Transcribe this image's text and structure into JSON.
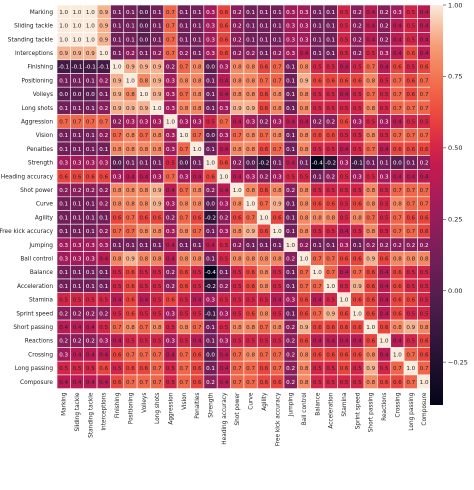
{
  "chart_data": {
    "type": "heatmap",
    "title": "",
    "labels": [
      "Marking",
      "Sliding tackle",
      "Standing tackle",
      "Interceptions",
      "Finishing",
      "Positioning",
      "Volleys",
      "Long shots",
      "Aggression",
      "Vision",
      "Penalties",
      "Strength",
      "Heading accuracy",
      "Shot power",
      "Curve",
      "Agility",
      "Free kick accuracy",
      "Jumping",
      "Ball control",
      "Balance",
      "Acceleration",
      "Stamina",
      "Sprint speed",
      "Short passing",
      "Reactions",
      "Crossing",
      "Long passing",
      "Composure"
    ],
    "matrix": [
      [
        1.0,
        1.0,
        1.0,
        0.9,
        0.1,
        0.1,
        0.0,
        0.1,
        0.7,
        0.1,
        0.1,
        0.3,
        0.6,
        0.2,
        0.1,
        0.1,
        0.1,
        0.3,
        0.3,
        0.1,
        0.1,
        0.5,
        0.2,
        0.4,
        0.2,
        0.3,
        0.5,
        0.4
      ],
      [
        1.0,
        1.0,
        1.0,
        0.9,
        0.1,
        0.1,
        0.0,
        0.1,
        0.7,
        0.1,
        0.1,
        0.3,
        0.6,
        0.2,
        0.1,
        0.1,
        0.1,
        0.3,
        0.3,
        0.1,
        0.1,
        0.5,
        0.2,
        0.4,
        0.2,
        0.4,
        0.5,
        0.4
      ],
      [
        1.0,
        1.0,
        1.0,
        0.9,
        0.1,
        0.1,
        0.0,
        0.1,
        0.7,
        0.1,
        0.1,
        0.3,
        0.6,
        0.2,
        0.1,
        0.1,
        0.1,
        0.3,
        0.3,
        0.1,
        0.1,
        0.5,
        0.2,
        0.4,
        0.2,
        0.4,
        0.5,
        0.4
      ],
      [
        0.9,
        0.9,
        0.9,
        1.0,
        0.1,
        0.2,
        0.1,
        0.2,
        0.7,
        0.2,
        0.1,
        0.3,
        0.6,
        0.2,
        0.2,
        0.1,
        0.2,
        0.3,
        0.4,
        0.1,
        0.1,
        0.5,
        0.2,
        0.5,
        0.3,
        0.4,
        0.6,
        0.4
      ],
      [
        -0.1,
        -0.1,
        -0.1,
        -0.1,
        1.0,
        0.9,
        0.9,
        0.9,
        0.2,
        0.7,
        0.8,
        0.0,
        0.3,
        0.8,
        0.8,
        0.6,
        0.7,
        0.1,
        0.8,
        0.5,
        0.5,
        0.4,
        0.5,
        0.7,
        0.4,
        0.6,
        0.5,
        0.6
      ],
      [
        0.1,
        0.1,
        0.1,
        0.2,
        0.9,
        1.0,
        0.8,
        0.9,
        0.3,
        0.8,
        0.8,
        0.1,
        0.4,
        0.8,
        0.8,
        0.7,
        0.7,
        0.1,
        0.9,
        0.6,
        0.6,
        0.6,
        0.6,
        0.8,
        0.5,
        0.7,
        0.6,
        0.7
      ],
      [
        0.0,
        0.0,
        0.0,
        0.1,
        0.9,
        0.8,
        1.0,
        0.9,
        0.3,
        0.7,
        0.8,
        0.1,
        0.4,
        0.8,
        0.8,
        0.6,
        0.8,
        0.1,
        0.8,
        0.5,
        0.5,
        0.4,
        0.5,
        0.7,
        0.5,
        0.7,
        0.6,
        0.7
      ],
      [
        0.1,
        0.1,
        0.1,
        0.2,
        0.9,
        0.9,
        0.9,
        1.0,
        0.3,
        0.8,
        0.8,
        0.1,
        0.3,
        0.9,
        0.9,
        0.6,
        0.8,
        0.1,
        0.8,
        0.5,
        0.5,
        0.5,
        0.5,
        0.8,
        0.5,
        0.7,
        0.7,
        0.7
      ],
      [
        0.7,
        0.7,
        0.7,
        0.7,
        0.2,
        0.3,
        0.3,
        0.3,
        1.0,
        0.3,
        0.3,
        0.5,
        0.7,
        0.4,
        0.3,
        0.2,
        0.3,
        0.4,
        0.4,
        0.2,
        0.2,
        0.6,
        0.3,
        0.5,
        0.3,
        0.4,
        0.5,
        0.5
      ],
      [
        0.1,
        0.1,
        0.1,
        0.2,
        0.7,
        0.8,
        0.7,
        0.8,
        0.3,
        1.0,
        0.7,
        0.0,
        0.3,
        0.7,
        0.8,
        0.7,
        0.8,
        0.1,
        0.8,
        0.6,
        0.6,
        0.5,
        0.5,
        0.8,
        0.5,
        0.7,
        0.7,
        0.7
      ],
      [
        0.1,
        0.1,
        0.1,
        0.1,
        0.8,
        0.8,
        0.8,
        0.8,
        0.3,
        0.7,
        1.0,
        0.1,
        0.4,
        0.8,
        0.8,
        0.6,
        0.7,
        0.1,
        0.8,
        0.5,
        0.5,
        0.4,
        0.5,
        0.7,
        0.4,
        0.6,
        0.6,
        0.6
      ],
      [
        0.3,
        0.3,
        0.3,
        0.3,
        0.0,
        0.1,
        0.1,
        0.1,
        0.5,
        0.0,
        0.1,
        1.0,
        0.6,
        0.2,
        0.0,
        -0.2,
        0.1,
        0.4,
        0.1,
        -0.4,
        -0.2,
        0.3,
        -0.1,
        0.1,
        0.1,
        0.0,
        0.1,
        0.2
      ],
      [
        0.6,
        0.6,
        0.6,
        0.6,
        0.3,
        0.4,
        0.4,
        0.3,
        0.7,
        0.3,
        0.4,
        0.6,
        1.0,
        0.4,
        0.3,
        0.2,
        0.3,
        0.5,
        0.5,
        0.1,
        0.2,
        0.5,
        0.3,
        0.5,
        0.3,
        0.4,
        0.4,
        0.4
      ],
      [
        0.2,
        0.2,
        0.2,
        0.2,
        0.8,
        0.8,
        0.8,
        0.9,
        0.4,
        0.7,
        0.8,
        0.2,
        0.4,
        1.0,
        0.8,
        0.6,
        0.8,
        0.2,
        0.8,
        0.5,
        0.5,
        0.5,
        0.5,
        0.8,
        0.5,
        0.7,
        0.7,
        0.7
      ],
      [
        0.1,
        0.1,
        0.1,
        0.2,
        0.8,
        0.8,
        0.8,
        0.9,
        0.3,
        0.8,
        0.8,
        0.0,
        0.3,
        0.8,
        1.0,
        0.7,
        0.9,
        0.1,
        0.8,
        0.6,
        0.6,
        0.5,
        0.6,
        0.8,
        0.5,
        0.8,
        0.7,
        0.7
      ],
      [
        0.1,
        0.1,
        0.1,
        0.1,
        0.6,
        0.7,
        0.6,
        0.6,
        0.2,
        0.7,
        0.6,
        -0.2,
        0.2,
        0.6,
        0.7,
        1.0,
        0.6,
        0.1,
        0.8,
        0.8,
        0.8,
        0.5,
        0.8,
        0.7,
        0.5,
        0.7,
        0.6,
        0.6
      ],
      [
        0.1,
        0.1,
        0.1,
        0.2,
        0.7,
        0.7,
        0.8,
        0.8,
        0.3,
        0.8,
        0.7,
        0.1,
        0.3,
        0.8,
        0.9,
        0.6,
        1.0,
        0.1,
        0.8,
        0.5,
        0.5,
        0.4,
        0.5,
        0.8,
        0.5,
        0.7,
        0.7,
        0.6
      ],
      [
        0.3,
        0.3,
        0.3,
        0.3,
        0.1,
        0.1,
        0.1,
        0.1,
        0.4,
        0.1,
        0.1,
        0.4,
        0.5,
        0.2,
        0.1,
        0.1,
        0.1,
        1.0,
        0.2,
        0.1,
        0.1,
        0.3,
        0.1,
        0.2,
        0.2,
        0.2,
        0.2,
        0.2
      ],
      [
        0.3,
        0.3,
        0.3,
        0.4,
        0.8,
        0.9,
        0.8,
        0.8,
        0.4,
        0.8,
        0.8,
        0.1,
        0.5,
        0.8,
        0.8,
        0.8,
        0.8,
        0.2,
        1.0,
        0.7,
        0.7,
        0.6,
        0.6,
        0.9,
        0.6,
        0.8,
        0.8,
        0.8
      ],
      [
        0.1,
        0.1,
        0.1,
        0.1,
        0.5,
        0.6,
        0.5,
        0.5,
        0.2,
        0.6,
        0.5,
        -0.4,
        0.1,
        0.5,
        0.6,
        0.8,
        0.5,
        0.1,
        0.7,
        1.0,
        0.7,
        0.4,
        0.7,
        0.6,
        0.4,
        0.6,
        0.5,
        0.5
      ],
      [
        0.1,
        0.1,
        0.1,
        0.1,
        0.5,
        0.6,
        0.5,
        0.5,
        0.2,
        0.6,
        0.5,
        -0.2,
        0.2,
        0.5,
        0.6,
        0.8,
        0.5,
        0.1,
        0.7,
        0.7,
        1.0,
        0.5,
        0.9,
        0.6,
        0.4,
        0.6,
        0.5,
        0.5
      ],
      [
        0.5,
        0.5,
        0.5,
        0.5,
        0.4,
        0.6,
        0.4,
        0.5,
        0.6,
        0.5,
        0.4,
        0.3,
        0.5,
        0.5,
        0.5,
        0.5,
        0.4,
        0.3,
        0.6,
        0.4,
        0.5,
        1.0,
        0.6,
        0.6,
        0.4,
        0.6,
        0.6,
        0.5
      ],
      [
        0.2,
        0.2,
        0.2,
        0.2,
        0.5,
        0.6,
        0.5,
        0.5,
        0.3,
        0.5,
        0.5,
        -0.1,
        0.3,
        0.5,
        0.6,
        0.8,
        0.5,
        0.1,
        0.6,
        0.7,
        0.9,
        0.6,
        1.0,
        0.6,
        0.4,
        0.6,
        0.5,
        0.5
      ],
      [
        0.4,
        0.4,
        0.4,
        0.5,
        0.7,
        0.8,
        0.7,
        0.8,
        0.5,
        0.8,
        0.7,
        0.1,
        0.5,
        0.8,
        0.8,
        0.7,
        0.8,
        0.2,
        0.9,
        0.6,
        0.6,
        0.6,
        0.6,
        1.0,
        0.6,
        0.8,
        0.9,
        0.8
      ],
      [
        0.2,
        0.2,
        0.2,
        0.3,
        0.4,
        0.5,
        0.5,
        0.5,
        0.3,
        0.5,
        0.4,
        0.1,
        0.3,
        0.5,
        0.5,
        0.5,
        0.5,
        0.2,
        0.6,
        0.4,
        0.4,
        0.4,
        0.4,
        0.6,
        1.0,
        0.4,
        0.5,
        0.6
      ],
      [
        0.3,
        0.4,
        0.4,
        0.4,
        0.6,
        0.7,
        0.7,
        0.7,
        0.4,
        0.7,
        0.6,
        0.0,
        0.4,
        0.7,
        0.8,
        0.7,
        0.7,
        0.2,
        0.8,
        0.6,
        0.6,
        0.6,
        0.6,
        0.8,
        0.4,
        1.0,
        0.7,
        0.6
      ],
      [
        0.5,
        0.5,
        0.5,
        0.6,
        0.5,
        0.6,
        0.6,
        0.7,
        0.5,
        0.7,
        0.6,
        0.1,
        0.4,
        0.7,
        0.7,
        0.6,
        0.7,
        0.2,
        0.8,
        0.5,
        0.5,
        0.6,
        0.5,
        0.9,
        0.5,
        0.7,
        1.0,
        0.7
      ],
      [
        0.4,
        0.4,
        0.4,
        0.4,
        0.6,
        0.7,
        0.7,
        0.7,
        0.5,
        0.7,
        0.6,
        0.2,
        0.4,
        0.7,
        0.7,
        0.6,
        0.6,
        0.2,
        0.8,
        0.5,
        0.5,
        0.5,
        0.5,
        0.8,
        0.6,
        0.6,
        0.7,
        1.0
      ]
    ],
    "colorbar": {
      "min": -0.4,
      "max": 1.0,
      "ticks": [
        1.0,
        0.75,
        0.5,
        0.25,
        0.0,
        -0.25
      ]
    },
    "colormap": "rocket",
    "grid": true
  }
}
